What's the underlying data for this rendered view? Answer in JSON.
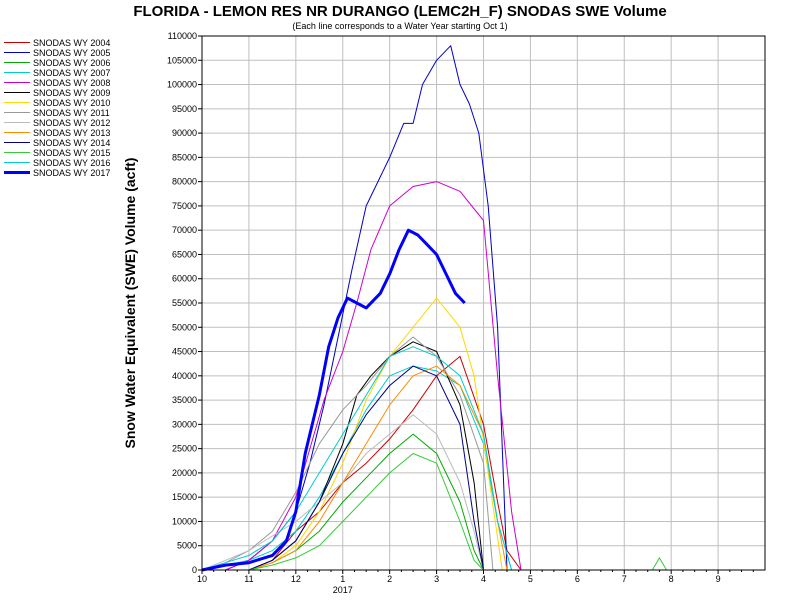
{
  "chart_data": {
    "type": "line",
    "title": "FLORIDA - LEMON RES NR DURANGO (LEMC2H_F) SNODAS SWE Volume",
    "subtitle": "(Each line corresponds to a Water Year starting Oct 1)",
    "ylabel": "Snow Water Equivalent (SWE) Volume (acft)",
    "xlabel": "",
    "ylim": [
      0,
      110000
    ],
    "ytick_labels": [
      "0",
      "5000",
      "10000",
      "15000",
      "20000",
      "25000",
      "30000",
      "35000",
      "40000",
      "45000",
      "50000",
      "55000",
      "60000",
      "65000",
      "70000",
      "75000",
      "80000",
      "85000",
      "90000",
      "95000",
      "100000",
      "105000",
      "110000"
    ],
    "x_unit": "month of water year (0 = Oct 1)",
    "xlim": [
      0,
      12
    ],
    "x_tick_labels": [
      "10",
      "11",
      "12",
      "1",
      "2",
      "3",
      "4",
      "5",
      "6",
      "7",
      "8",
      "9"
    ],
    "x_year_label": "2017",
    "grid": true,
    "legend_position": "left, outside plot",
    "series": [
      {
        "name": "SNODAS WY 2004",
        "color": "#cc0000",
        "width": 1,
        "x": [
          0,
          1,
          1.5,
          2,
          2.5,
          3,
          3.5,
          4,
          4.5,
          5,
          5.5,
          6,
          6.3,
          6.5,
          6.8
        ],
        "y": [
          0,
          0,
          2000,
          8000,
          12000,
          18000,
          22000,
          27000,
          33000,
          40000,
          44000,
          30000,
          14000,
          4000,
          0
        ]
      },
      {
        "name": "SNODAS WY 2005",
        "color": "#0000cc",
        "width": 1,
        "x": [
          0,
          0.5,
          1,
          1.5,
          2,
          2.3,
          2.6,
          2.9,
          3.2,
          3.5,
          4,
          4.3,
          4.5,
          4.7,
          5,
          5.3,
          5.5,
          5.7,
          5.9,
          6.1,
          6.3,
          6.5
        ],
        "y": [
          0,
          0,
          2000,
          6000,
          12000,
          22000,
          34000,
          48000,
          62000,
          75000,
          85000,
          92000,
          92000,
          100000,
          105000,
          108000,
          100000,
          96000,
          90000,
          75000,
          50000,
          0
        ]
      },
      {
        "name": "SNODAS WY 2006",
        "color": "#00aa00",
        "width": 1,
        "x": [
          0,
          1,
          1.5,
          2,
          2.5,
          3,
          3.5,
          4,
          4.5,
          5,
          5.5,
          5.8,
          6
        ],
        "y": [
          0,
          0,
          1500,
          4000,
          8000,
          14000,
          19000,
          24000,
          28000,
          24000,
          14000,
          4000,
          0
        ]
      },
      {
        "name": "SNODAS WY 2007",
        "color": "#00cccc",
        "width": 1,
        "x": [
          0,
          0.5,
          1,
          1.5,
          2,
          2.5,
          3,
          3.5,
          4,
          4.5,
          5,
          5.5,
          6,
          6.3,
          6.6
        ],
        "y": [
          0,
          1000,
          2000,
          4000,
          8000,
          15000,
          24000,
          33000,
          40000,
          42000,
          41000,
          38000,
          26000,
          10000,
          0
        ]
      },
      {
        "name": "SNODAS WY 2008",
        "color": "#cc00cc",
        "width": 1,
        "x": [
          0,
          0.5,
          1,
          1.5,
          2,
          2.3,
          2.6,
          3,
          3.3,
          3.6,
          4,
          4.5,
          5,
          5.5,
          6,
          6.3,
          6.6,
          6.8
        ],
        "y": [
          0,
          0,
          2000,
          6000,
          15000,
          25000,
          35000,
          45000,
          55000,
          66000,
          75000,
          79000,
          80000,
          78000,
          72000,
          40000,
          12000,
          0
        ]
      },
      {
        "name": "SNODAS WY 2009",
        "color": "#000000",
        "width": 1,
        "x": [
          0,
          1,
          1.5,
          2,
          2.5,
          3,
          3.3,
          3.6,
          4,
          4.5,
          5,
          5.5,
          5.8,
          6
        ],
        "y": [
          0,
          0,
          2000,
          6000,
          14000,
          26000,
          36000,
          40000,
          44000,
          47000,
          45000,
          34000,
          18000,
          0
        ]
      },
      {
        "name": "SNODAS WY 2010",
        "color": "#ffd700",
        "width": 1,
        "x": [
          0,
          1,
          1.5,
          2,
          2.5,
          3,
          3.5,
          4,
          4.5,
          5,
          5.5,
          5.8,
          6.1,
          6.4
        ],
        "y": [
          0,
          0,
          1500,
          5000,
          12000,
          22000,
          35000,
          44000,
          50000,
          56000,
          50000,
          40000,
          20000,
          0
        ]
      },
      {
        "name": "SNODAS WY 2011",
        "color": "#999999",
        "width": 1,
        "x": [
          0,
          0.5,
          1,
          1.5,
          2,
          2.5,
          3,
          3.5,
          4,
          4.5,
          5,
          5.5,
          6,
          6.2
        ],
        "y": [
          0,
          1500,
          4000,
          8000,
          16000,
          26000,
          33000,
          38000,
          44000,
          48000,
          44000,
          36000,
          22000,
          0
        ]
      },
      {
        "name": "SNODAS WY 2012",
        "color": "#bbbbbb",
        "width": 1,
        "x": [
          0,
          0.5,
          1,
          1.5,
          2,
          2.5,
          3,
          3.5,
          4,
          4.5,
          5,
          5.5,
          5.8,
          6
        ],
        "y": [
          0,
          2000,
          4000,
          7000,
          10000,
          14000,
          18000,
          24000,
          28000,
          32000,
          28000,
          18000,
          8000,
          0
        ]
      },
      {
        "name": "SNODAS WY 2013",
        "color": "#ff8c00",
        "width": 1,
        "x": [
          0,
          1,
          1.5,
          2,
          2.5,
          3,
          3.5,
          4,
          4.5,
          5,
          5.5,
          6,
          6.3,
          6.5
        ],
        "y": [
          0,
          0,
          1500,
          4000,
          10000,
          18000,
          26000,
          34000,
          40000,
          42000,
          38000,
          28000,
          10000,
          0
        ]
      },
      {
        "name": "SNODAS WY 2014",
        "color": "#000080",
        "width": 1,
        "x": [
          0,
          1,
          1.5,
          2,
          2.5,
          3,
          3.5,
          4,
          4.5,
          5,
          5.5,
          5.8,
          6
        ],
        "y": [
          0,
          0,
          2000,
          6000,
          14000,
          24000,
          32000,
          38000,
          42000,
          40000,
          30000,
          10000,
          0
        ]
      },
      {
        "name": "SNODAS WY 2015",
        "color": "#33cc33",
        "width": 1,
        "x": [
          0,
          1,
          1.5,
          2,
          2.5,
          3,
          3.5,
          4,
          4.5,
          5,
          5.5,
          5.8,
          6,
          9.6,
          9.75,
          9.9
        ],
        "y": [
          0,
          0,
          1000,
          2500,
          5000,
          10000,
          15000,
          20000,
          24000,
          22000,
          10000,
          2000,
          0,
          0,
          2500,
          0
        ]
      },
      {
        "name": "SNODAS WY 2016",
        "color": "#00cccc",
        "width": 1,
        "x": [
          0,
          0.5,
          1,
          1.5,
          2,
          2.5,
          3,
          3.5,
          4,
          4.5,
          5,
          5.5,
          6,
          6.3,
          6.6
        ],
        "y": [
          0,
          1500,
          3000,
          6000,
          12000,
          20000,
          28000,
          36000,
          44000,
          46000,
          44000,
          40000,
          28000,
          10000,
          0
        ]
      },
      {
        "name": "SNODAS WY 2017",
        "color": "#0000ff",
        "width": 3,
        "x": [
          0,
          0.5,
          1,
          1.5,
          1.8,
          2,
          2.2,
          2.5,
          2.7,
          2.9,
          3.1,
          3.3,
          3.5,
          3.8,
          4,
          4.2,
          4.4,
          4.6,
          4.8,
          5,
          5.2,
          5.4,
          5.6
        ],
        "y": [
          0,
          1000,
          1500,
          3000,
          6000,
          12000,
          24000,
          36000,
          46000,
          52000,
          56000,
          55000,
          54000,
          57000,
          61000,
          66000,
          70000,
          69000,
          67000,
          65000,
          61000,
          57000,
          55000
        ]
      }
    ]
  }
}
